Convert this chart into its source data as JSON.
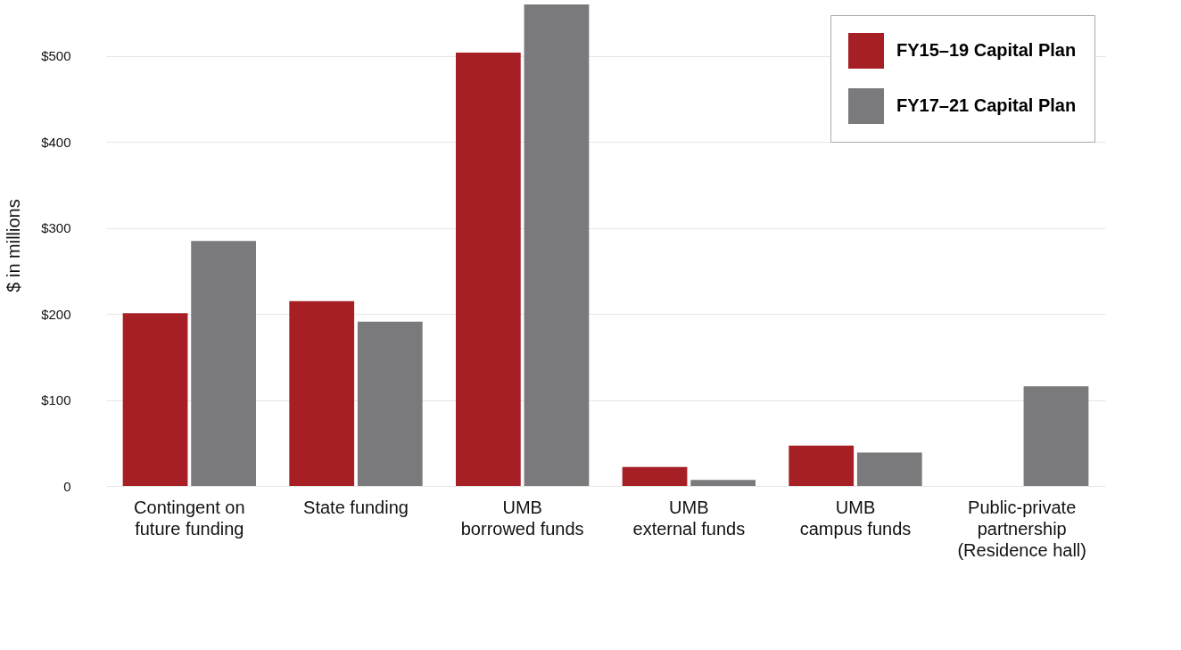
{
  "chart_data": {
    "type": "bar",
    "ylabel": "$ in millions",
    "categories": [
      "Contingent on\nfuture funding",
      "State funding",
      "UMB\nborrowed funds",
      "UMB\nexternal funds",
      "UMB\ncampus funds",
      "Public-private\npartnership\n(Residence hall)"
    ],
    "series": [
      {
        "name": "FY15–19 Capital Plan",
        "color": "#a51f24",
        "values": [
          201,
          215,
          504,
          22,
          47,
          null
        ]
      },
      {
        "name": "FY17–21 Capital Plan",
        "color": "#7a7a7c",
        "values": [
          285,
          191,
          560,
          7,
          39,
          116
        ]
      }
    ],
    "ylim": [
      0,
      560
    ],
    "yticks": [
      0,
      {
        "value": 100,
        "label": "$100"
      },
      {
        "value": 200,
        "label": "$200"
      },
      {
        "value": 300,
        "label": "$300"
      },
      {
        "value": 400,
        "label": "$400"
      },
      {
        "value": 500,
        "label": "$500"
      }
    ],
    "grid": "y",
    "legend": "top right"
  }
}
